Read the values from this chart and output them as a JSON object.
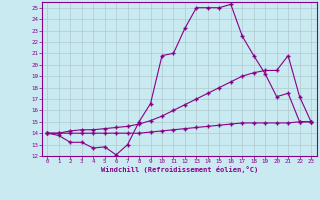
{
  "xlabel": "Windchill (Refroidissement éolien,°C)",
  "bg_color": "#c8eaf0",
  "line_color": "#880088",
  "grid_color": "#b0c8d0",
  "xlim": [
    -0.5,
    23.5
  ],
  "ylim": [
    12,
    25.5
  ],
  "yticks": [
    12,
    13,
    14,
    15,
    16,
    17,
    18,
    19,
    20,
    21,
    22,
    23,
    24,
    25
  ],
  "xticks": [
    0,
    1,
    2,
    3,
    4,
    5,
    6,
    7,
    8,
    9,
    10,
    11,
    12,
    13,
    14,
    15,
    16,
    17,
    18,
    19,
    20,
    21,
    22,
    23
  ],
  "line1_x": [
    0,
    1,
    2,
    3,
    4,
    5,
    6,
    7,
    8,
    9,
    10,
    11,
    12,
    13,
    14,
    15,
    16,
    17,
    18,
    19,
    20,
    21,
    22,
    23
  ],
  "line1_y": [
    14.0,
    13.8,
    13.2,
    13.2,
    12.7,
    12.8,
    12.1,
    13.0,
    15.0,
    16.6,
    20.8,
    21.0,
    23.2,
    25.0,
    25.0,
    25.0,
    25.3,
    22.5,
    20.8,
    19.2,
    17.2,
    17.5,
    15.0,
    15.0
  ],
  "line2_x": [
    0,
    1,
    2,
    3,
    4,
    5,
    6,
    7,
    8,
    9,
    10,
    11,
    12,
    13,
    14,
    15,
    16,
    17,
    18,
    19,
    20,
    21,
    22,
    23
  ],
  "line2_y": [
    14.0,
    14.0,
    14.2,
    14.3,
    14.3,
    14.4,
    14.5,
    14.6,
    14.8,
    15.1,
    15.5,
    16.0,
    16.5,
    17.0,
    17.5,
    18.0,
    18.5,
    19.0,
    19.3,
    19.5,
    19.5,
    20.8,
    17.2,
    15.0
  ],
  "line3_x": [
    0,
    1,
    2,
    3,
    4,
    5,
    6,
    7,
    8,
    9,
    10,
    11,
    12,
    13,
    14,
    15,
    16,
    17,
    18,
    19,
    20,
    21,
    22,
    23
  ],
  "line3_y": [
    14.0,
    14.0,
    14.0,
    14.0,
    14.0,
    14.0,
    14.0,
    14.0,
    14.0,
    14.1,
    14.2,
    14.3,
    14.4,
    14.5,
    14.6,
    14.7,
    14.8,
    14.9,
    14.9,
    14.9,
    14.9,
    14.9,
    15.0,
    15.0
  ]
}
